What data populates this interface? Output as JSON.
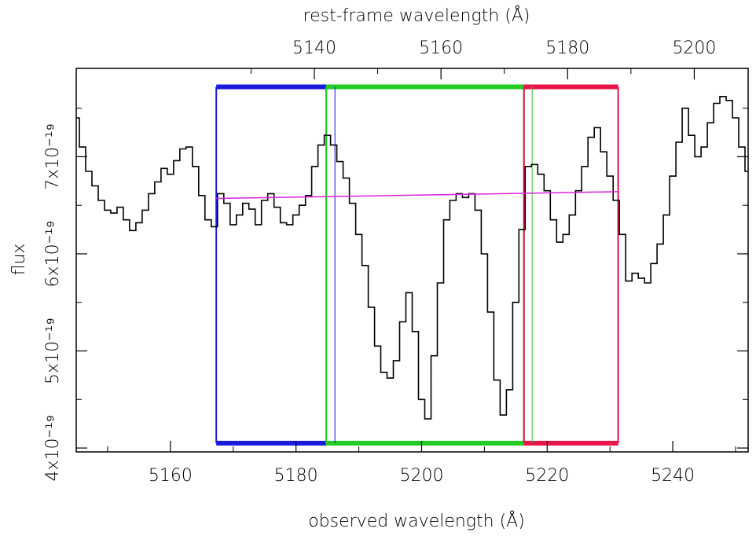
{
  "chart_data": {
    "type": "line",
    "title": "",
    "xlabel": "observed wavelength (Å)",
    "x2label": "rest-frame wavelength (Å)",
    "ylabel": "flux",
    "xlim": [
      5145,
      5252
    ],
    "ylim": [
      3.96e-19,
      7.91e-19
    ],
    "x2_offset_factor": 1.00835,
    "x_ticks": [
      {
        "value": 5160,
        "label": "5160"
      },
      {
        "value": 5180,
        "label": "5180"
      },
      {
        "value": 5200,
        "label": "5200"
      },
      {
        "value": 5220,
        "label": "5220"
      },
      {
        "value": 5240,
        "label": "5240"
      }
    ],
    "x2_ticks": [
      {
        "value": 5140,
        "label": "5140"
      },
      {
        "value": 5160,
        "label": "5160"
      },
      {
        "value": 5180,
        "label": "5180"
      },
      {
        "value": 5200,
        "label": "5200"
      },
      {
        "value": 5220,
        "label": "5220"
      }
    ],
    "y_ticks": [
      {
        "value": 4e-19,
        "label": "4x10⁻¹⁹"
      },
      {
        "value": 5e-19,
        "label": "5x10⁻¹⁹"
      },
      {
        "value": 6e-19,
        "label": "6x10⁻¹⁹"
      },
      {
        "value": 7e-19,
        "label": "7x10⁻¹⁹"
      }
    ],
    "bands": [
      {
        "name": "blue-continuum",
        "x0": 5167.3,
        "x1": 5184.8,
        "color": "#1a1adf"
      },
      {
        "name": "index-bandpass",
        "x0": 5184.8,
        "x1": 5216.3,
        "color": "#22cc22"
      },
      {
        "name": "red-continuum",
        "x0": 5216.3,
        "x1": 5231.3,
        "color": "#e8144a"
      }
    ],
    "band_y_top": 7.72e-19,
    "band_y_bottom": 4.05e-19,
    "marker_lines": [
      {
        "x": 5184.9,
        "color": "#22cc22"
      },
      {
        "x": 5186.2,
        "color": "#1a1adf"
      },
      {
        "x": 5217.6,
        "color": "#22cc22"
      }
    ],
    "pseudo_continuum": {
      "x": [
        5167.3,
        5231.3
      ],
      "y": [
        6.57e-19,
        6.64e-19
      ],
      "color": "#dd22dd"
    },
    "spectrum": {
      "x": [
        5145,
        5146,
        5147,
        5148,
        5149,
        5150,
        5151,
        5152,
        5153,
        5154,
        5155,
        5156,
        5157,
        5158,
        5159,
        5160,
        5161,
        5162,
        5163,
        5164,
        5165,
        5166,
        5167,
        5168,
        5169,
        5170,
        5171,
        5172,
        5173,
        5174,
        5175,
        5176,
        5177,
        5178,
        5179,
        5180,
        5181,
        5182,
        5183,
        5184,
        5185,
        5186,
        5187,
        5188,
        5189,
        5190,
        5191,
        5192,
        5193,
        5194,
        5195,
        5196,
        5197,
        5198,
        5199,
        5200,
        5201,
        5202,
        5203,
        5204,
        5205,
        5206,
        5207,
        5208,
        5209,
        5210,
        5211,
        5212,
        5213,
        5214,
        5215,
        5216,
        5217,
        5218,
        5219,
        5220,
        5221,
        5222,
        5223,
        5224,
        5225,
        5226,
        5227,
        5228,
        5229,
        5230,
        5231,
        5232,
        5233,
        5234,
        5235,
        5236,
        5237,
        5238,
        5239,
        5240,
        5241,
        5242,
        5243,
        5244,
        5245,
        5246,
        5247,
        5248,
        5249,
        5250,
        5251,
        5252
      ],
      "y": [
        7.4e-19,
        7.1e-19,
        6.85e-19,
        6.7e-19,
        6.55e-19,
        6.45e-19,
        6.42e-19,
        6.48e-19,
        6.35e-19,
        6.24e-19,
        6.32e-19,
        6.45e-19,
        6.62e-19,
        6.74e-19,
        6.88e-19,
        6.82e-19,
        6.96e-19,
        7.08e-19,
        7.1e-19,
        6.9e-19,
        6.6e-19,
        6.35e-19,
        6.28e-19,
        6.62e-19,
        6.52e-19,
        6.3e-19,
        6.4e-19,
        6.52e-19,
        6.46e-19,
        6.3e-19,
        6.55e-19,
        6.62e-19,
        6.48e-19,
        6.32e-19,
        6.3e-19,
        6.4e-19,
        6.5e-19,
        6.6e-19,
        6.9e-19,
        7.12e-19,
        7.22e-19,
        7.12e-19,
        6.95e-19,
        6.78e-19,
        6.52e-19,
        6.2e-19,
        5.88e-19,
        5.45e-19,
        5.05e-19,
        4.78e-19,
        4.72e-19,
        4.9e-19,
        5.3e-19,
        5.6e-19,
        5.2e-19,
        4.5e-19,
        4.3e-19,
        4.95e-19,
        5.7e-19,
        6.35e-19,
        6.55e-19,
        6.62e-19,
        6.58e-19,
        6.62e-19,
        6.45e-19,
        6e-19,
        5.4e-19,
        4.7e-19,
        4.34e-19,
        4.6e-19,
        5.5e-19,
        6.25e-19,
        6.9e-19,
        6.92e-19,
        6.82e-19,
        6.65e-19,
        6.35e-19,
        6.12e-19,
        6.2e-19,
        6.4e-19,
        6.65e-19,
        6.9e-19,
        7.2e-19,
        7.3e-19,
        7.05e-19,
        6.8e-19,
        6.55e-19,
        6.2e-19,
        5.72e-19,
        5.8e-19,
        5.75e-19,
        5.7e-19,
        5.9e-19,
        6.1e-19,
        6.4e-19,
        6.8e-19,
        7.15e-19,
        7.5e-19,
        7.22e-19,
        7e-19,
        7.1e-19,
        7.35e-19,
        7.55e-19,
        7.62e-19,
        7.58e-19,
        7.4e-19,
        7.1e-19,
        6.85e-19
      ]
    }
  }
}
